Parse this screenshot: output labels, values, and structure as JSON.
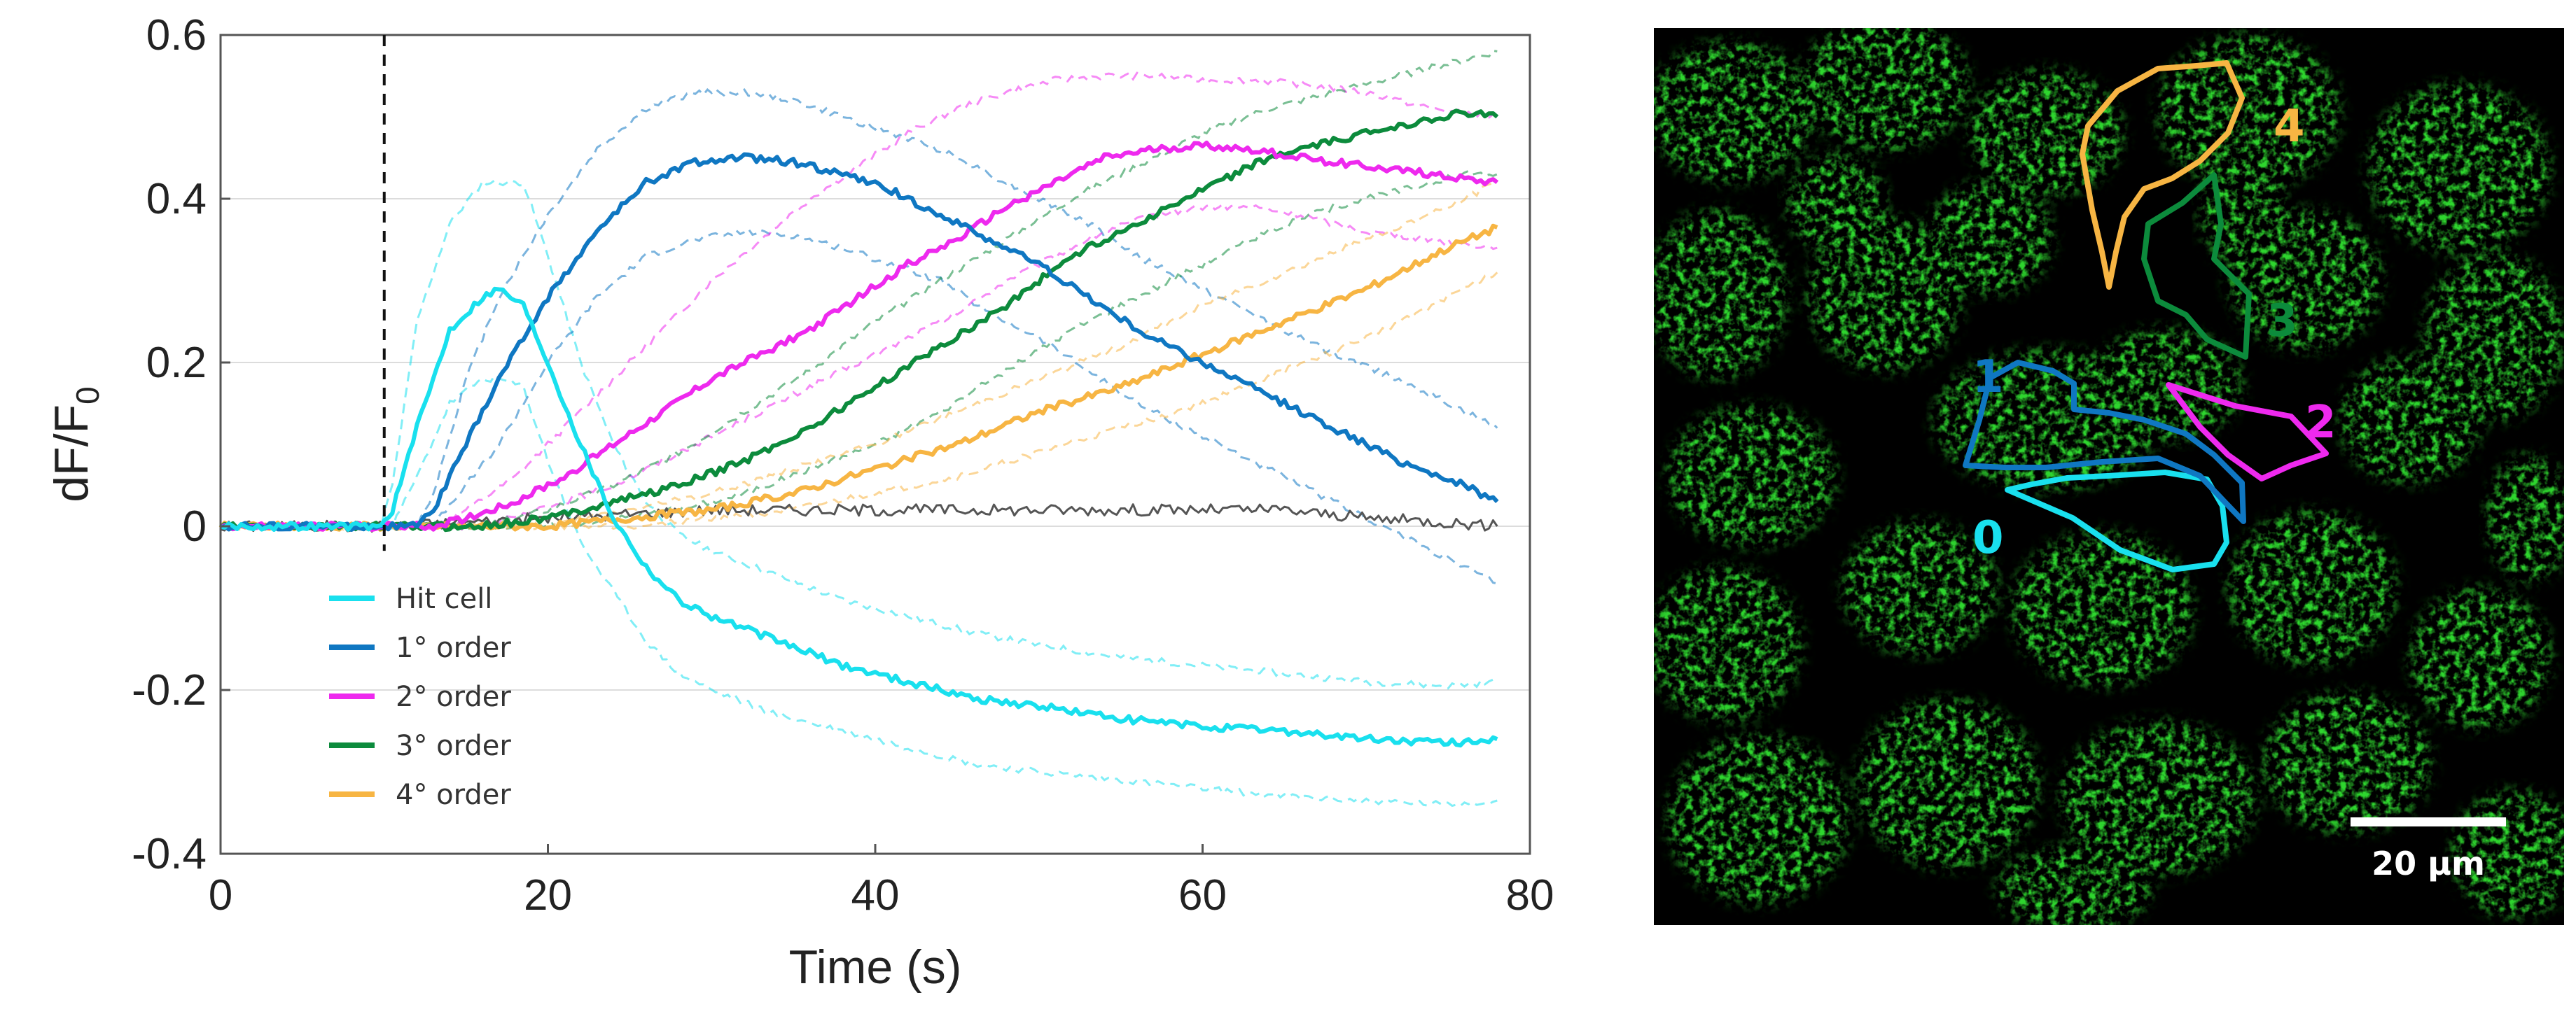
{
  "chart_data": {
    "type": "line",
    "xlabel": "Time (s)",
    "ylabel_main": "dF/F",
    "ylabel_sub": "0",
    "xlim": [
      0,
      80
    ],
    "ylim": [
      -0.4,
      0.6
    ],
    "xticks": [
      0,
      20,
      40,
      60,
      80
    ],
    "yticks": [
      0.6,
      0.4,
      0.2,
      0,
      -0.2,
      -0.4
    ],
    "ytick_labels": [
      "0.6",
      "0.4",
      "0.2",
      "0",
      "-0.2",
      "-0.4"
    ],
    "grid": "horizontal",
    "stimulus_line_x": 10,
    "legend_position": "bottom-left inside",
    "series": [
      {
        "name": "Hit cell",
        "color": "#19E0EE",
        "x": [
          0,
          9.8,
          10.5,
          12,
          14,
          16,
          17,
          18.5,
          20,
          22,
          24,
          26,
          28,
          30,
          34,
          38,
          42,
          46,
          50,
          55,
          60,
          65,
          70,
          75,
          78
        ],
        "y": [
          0,
          0,
          0.02,
          0.12,
          0.24,
          0.28,
          0.29,
          0.27,
          0.2,
          0.1,
          0.01,
          -0.05,
          -0.09,
          -0.11,
          -0.14,
          -0.17,
          -0.19,
          -0.21,
          -0.22,
          -0.235,
          -0.245,
          -0.25,
          -0.26,
          -0.265,
          -0.26
        ],
        "upper": [
          0,
          0,
          0.05,
          0.25,
          0.37,
          0.42,
          0.42,
          0.42,
          0.33,
          0.2,
          0.1,
          0.03,
          -0.01,
          -0.03,
          -0.06,
          -0.09,
          -0.11,
          -0.13,
          -0.145,
          -0.16,
          -0.17,
          -0.18,
          -0.19,
          -0.195,
          -0.19
        ],
        "lower": [
          0,
          0,
          0,
          0.06,
          0.15,
          0.18,
          0.18,
          0.17,
          0.08,
          -0.02,
          -0.08,
          -0.14,
          -0.18,
          -0.2,
          -0.23,
          -0.25,
          -0.27,
          -0.29,
          -0.3,
          -0.31,
          -0.32,
          -0.33,
          -0.335,
          -0.34,
          -0.335
        ]
      },
      {
        "name": "1° order",
        "color": "#0F77C2",
        "x": [
          0,
          12,
          13,
          15,
          17,
          20,
          23,
          26,
          29,
          32,
          35,
          38,
          41,
          44,
          47,
          50,
          53,
          56,
          60,
          64,
          68,
          72,
          76,
          78
        ],
        "y": [
          0,
          0,
          0.02,
          0.1,
          0.18,
          0.28,
          0.36,
          0.42,
          0.445,
          0.45,
          0.445,
          0.43,
          0.41,
          0.38,
          0.35,
          0.32,
          0.28,
          0.24,
          0.2,
          0.16,
          0.12,
          0.08,
          0.05,
          0.03
        ],
        "upper": [
          0,
          0,
          0.04,
          0.18,
          0.28,
          0.38,
          0.46,
          0.51,
          0.53,
          0.53,
          0.52,
          0.5,
          0.48,
          0.46,
          0.43,
          0.4,
          0.37,
          0.33,
          0.29,
          0.25,
          0.21,
          0.18,
          0.14,
          0.12
        ],
        "lower": [
          0,
          0,
          0,
          0.05,
          0.1,
          0.2,
          0.28,
          0.33,
          0.35,
          0.36,
          0.355,
          0.34,
          0.32,
          0.3,
          0.26,
          0.23,
          0.19,
          0.15,
          0.11,
          0.07,
          0.03,
          -0.01,
          -0.05,
          -0.07
        ]
      },
      {
        "name": "2° order",
        "color": "#EE29EE",
        "x": [
          0,
          13,
          15,
          18,
          21,
          24,
          27,
          30,
          33,
          36,
          39,
          42,
          45,
          48,
          51,
          54,
          57,
          60,
          63,
          66,
          70,
          74,
          78
        ],
        "y": [
          0,
          0,
          0.01,
          0.03,
          0.06,
          0.1,
          0.14,
          0.18,
          0.21,
          0.24,
          0.28,
          0.32,
          0.35,
          0.39,
          0.42,
          0.45,
          0.46,
          0.465,
          0.46,
          0.45,
          0.44,
          0.43,
          0.42
        ],
        "upper": [
          0,
          0,
          0.02,
          0.06,
          0.12,
          0.18,
          0.24,
          0.3,
          0.35,
          0.4,
          0.44,
          0.48,
          0.51,
          0.53,
          0.545,
          0.55,
          0.55,
          0.545,
          0.545,
          0.54,
          0.53,
          0.51,
          0.5
        ],
        "lower": [
          0,
          0,
          0,
          0.01,
          0.03,
          0.05,
          0.08,
          0.11,
          0.14,
          0.17,
          0.2,
          0.23,
          0.26,
          0.3,
          0.33,
          0.36,
          0.38,
          0.39,
          0.39,
          0.38,
          0.36,
          0.35,
          0.34
        ]
      },
      {
        "name": "3° order",
        "color": "#0C8B3C",
        "x": [
          0,
          16,
          20,
          24,
          28,
          32,
          36,
          40,
          44,
          48,
          52,
          56,
          60,
          64,
          68,
          72,
          76,
          78
        ],
        "y": [
          0,
          0,
          0.01,
          0.03,
          0.05,
          0.08,
          0.12,
          0.17,
          0.22,
          0.27,
          0.33,
          0.37,
          0.41,
          0.45,
          0.47,
          0.49,
          0.505,
          0.5
        ],
        "upper": [
          0,
          0,
          0.02,
          0.05,
          0.09,
          0.14,
          0.19,
          0.25,
          0.3,
          0.35,
          0.4,
          0.44,
          0.48,
          0.51,
          0.53,
          0.55,
          0.57,
          0.58
        ],
        "lower": [
          0,
          0,
          0,
          0.01,
          0.02,
          0.04,
          0.07,
          0.1,
          0.14,
          0.19,
          0.24,
          0.28,
          0.32,
          0.36,
          0.39,
          0.41,
          0.43,
          0.43
        ]
      },
      {
        "name": "4° order",
        "color": "#F7B543",
        "x": [
          0,
          20,
          25,
          30,
          35,
          40,
          45,
          50,
          55,
          60,
          65,
          70,
          75,
          78
        ],
        "y": [
          0,
          0,
          0.01,
          0.02,
          0.04,
          0.07,
          0.1,
          0.14,
          0.17,
          0.21,
          0.25,
          0.29,
          0.34,
          0.365
        ],
        "upper": [
          0,
          0,
          0.02,
          0.04,
          0.07,
          0.1,
          0.14,
          0.18,
          0.22,
          0.27,
          0.31,
          0.35,
          0.39,
          0.42
        ],
        "lower": [
          0,
          0,
          0,
          0.01,
          0.02,
          0.04,
          0.06,
          0.09,
          0.12,
          0.15,
          0.19,
          0.23,
          0.28,
          0.31
        ]
      },
      {
        "name": "",
        "color": "#555555",
        "x": [
          0,
          10,
          15,
          20,
          25,
          30,
          35,
          40,
          45,
          50,
          55,
          60,
          65,
          70,
          75,
          78
        ],
        "y": [
          0,
          0,
          0.005,
          0.01,
          0.015,
          0.02,
          0.02,
          0.02,
          0.02,
          0.02,
          0.02,
          0.02,
          0.02,
          0.01,
          0.005,
          0
        ]
      }
    ]
  },
  "image_panel": {
    "roi_labels": [
      {
        "text": "0",
        "color": "#19E0EE"
      },
      {
        "text": "1",
        "color": "#0F77C2"
      },
      {
        "text": "2",
        "color": "#EE29EE"
      },
      {
        "text": "3",
        "color": "#0C8B3C"
      },
      {
        "text": "4",
        "color": "#F7B543"
      }
    ],
    "scale_bar_label": "20 μm",
    "background_color": "#000000",
    "signal_color": "#2ED62E"
  }
}
